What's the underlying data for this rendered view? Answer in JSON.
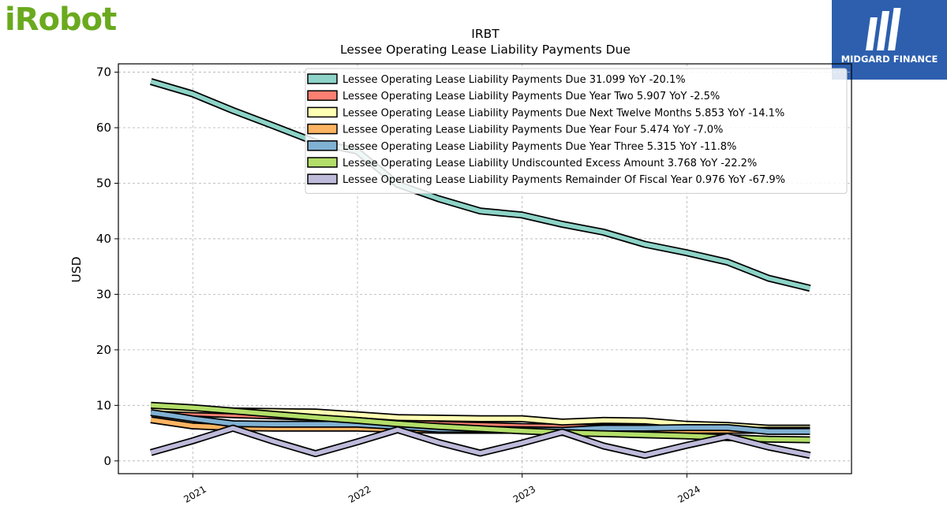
{
  "logos": {
    "left_text": "iRobot",
    "left_color": "#6aaa1e",
    "right_text": "MIDGARD FINANCE",
    "right_bg": "#2d5fae"
  },
  "chart_data": {
    "type": "line",
    "title": "IRBT",
    "subtitle": "Lessee Operating Lease Liability Payments Due",
    "xlabel": "",
    "ylabel": "USD",
    "ylim": [
      -2.3,
      71.5
    ],
    "yticks": [
      0,
      10,
      20,
      30,
      40,
      50,
      60,
      70
    ],
    "xlim": [
      "2020-07-20",
      "2024-12-31"
    ],
    "xticks": [
      "2021",
      "2022",
      "2023",
      "2024"
    ],
    "grid": true,
    "legend_position": "top-right",
    "x": [
      "2020-09-30",
      "2020-12-31",
      "2021-03-31",
      "2021-06-30",
      "2021-09-30",
      "2021-12-31",
      "2022-03-31",
      "2022-06-30",
      "2022-09-30",
      "2022-12-31",
      "2023-03-31",
      "2023-06-30",
      "2023-09-30",
      "2023-12-31",
      "2024-03-31",
      "2024-06-30",
      "2024-09-30"
    ],
    "series": [
      {
        "name": "Lessee Operating Lease Liability Payments Due  31.099 YoY -20.1%",
        "color": "#8dd3c7",
        "values": [
          68.3,
          66.1,
          63.1,
          60.3,
          57.4,
          55.8,
          49.8,
          47.2,
          45.0,
          44.3,
          42.6,
          41.2,
          39.0,
          37.5,
          35.8,
          32.9,
          31.1
        ]
      },
      {
        "name": "Lessee Operating Lease Liability Payments Due Year Two  5.907 YoY -2.5%",
        "color": "#fb8072",
        "values": [
          9.0,
          8.6,
          8.3,
          8.1,
          7.8,
          7.4,
          7.0,
          6.6,
          6.4,
          6.2,
          6.1,
          6.0,
          6.0,
          6.1,
          6.0,
          5.9,
          5.9
        ]
      },
      {
        "name": "Lessee Operating Lease Liability Payments Due Next Twelve Months  5.853 YoY -14.1%",
        "color": "#ffffb3",
        "values": [
          9.5,
          9.2,
          9.0,
          8.9,
          8.8,
          8.3,
          7.8,
          7.7,
          7.6,
          7.6,
          7.0,
          7.3,
          7.2,
          6.6,
          6.4,
          5.9,
          5.9
        ]
      },
      {
        "name": "Lessee Operating Lease Liability Payments Due Year Four  5.474 YoY -7.0%",
        "color": "#fdb462",
        "values": [
          7.4,
          6.3,
          6.0,
          5.9,
          5.9,
          5.9,
          5.7,
          5.5,
          5.5,
          5.5,
          5.5,
          5.5,
          5.5,
          5.5,
          5.5,
          5.5,
          5.5
        ]
      },
      {
        "name": "Lessee Operating Lease Liability Payments Due Year Three  5.315 YoY -11.8%",
        "color": "#80b1d3",
        "values": [
          8.7,
          7.6,
          6.7,
          6.6,
          6.6,
          6.6,
          6.2,
          5.7,
          5.7,
          5.6,
          5.5,
          5.9,
          5.9,
          6.0,
          6.0,
          5.3,
          5.3
        ]
      },
      {
        "name": "Lessee Operating Lease Liability Undiscounted Excess Amount  3.768 YoY -22.2%",
        "color": "#b3de69",
        "values": [
          10.0,
          9.6,
          9.0,
          8.4,
          7.8,
          7.3,
          6.7,
          6.2,
          5.8,
          5.4,
          5.1,
          4.9,
          4.7,
          4.5,
          4.2,
          3.9,
          3.8
        ]
      },
      {
        "name": "Lessee Operating Lease Liability Payments Remainder Of Fiscal Year  0.976 YoY -67.9%",
        "color": "#bebada",
        "values": [
          1.5,
          3.6,
          5.9,
          3.5,
          1.3,
          3.4,
          5.6,
          3.3,
          1.4,
          3.2,
          5.2,
          2.7,
          1.0,
          2.8,
          4.4,
          2.5,
          1.0
        ]
      }
    ]
  }
}
